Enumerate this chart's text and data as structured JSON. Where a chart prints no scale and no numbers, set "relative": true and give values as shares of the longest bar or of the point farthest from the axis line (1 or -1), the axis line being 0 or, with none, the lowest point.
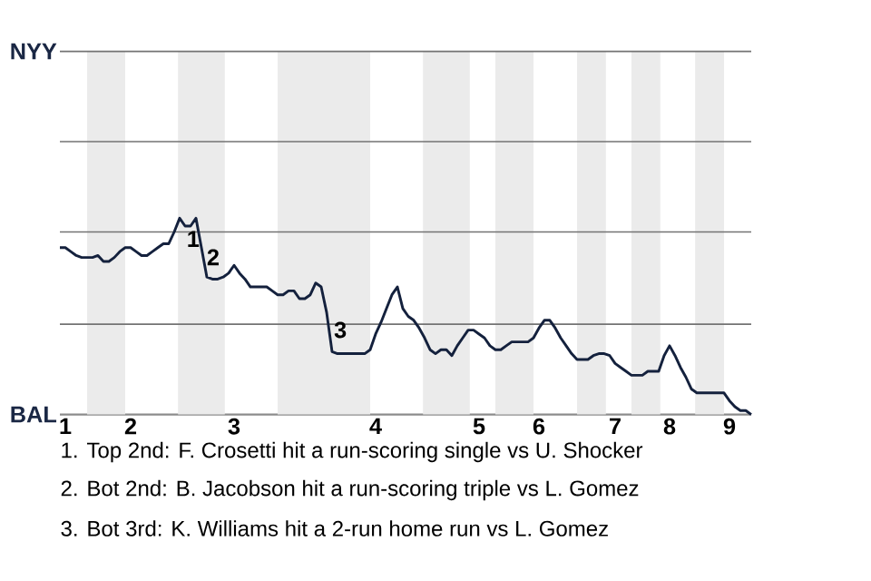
{
  "chart_data": {
    "type": "line",
    "relative": true,
    "categories": [
      null,
      "1",
      null,
      null,
      null,
      null,
      null,
      null,
      null,
      null,
      null,
      null,
      null,
      "2",
      null,
      null,
      null,
      null,
      null,
      null,
      null,
      null,
      null,
      null,
      null,
      null,
      null,
      null,
      null,
      null,
      null,
      null,
      "3",
      null,
      null,
      null,
      null,
      null,
      null,
      null,
      null,
      null,
      null,
      null,
      null,
      null,
      null,
      null,
      null,
      null,
      null,
      null,
      null,
      null,
      null,
      null,
      null,
      null,
      "4",
      null,
      null,
      null,
      null,
      null,
      null,
      null,
      null,
      null,
      null,
      null,
      null,
      null,
      null,
      null,
      null,
      null,
      null,
      "5",
      null,
      null,
      null,
      null,
      null,
      null,
      null,
      null,
      null,
      null,
      "6",
      null,
      null,
      null,
      null,
      null,
      null,
      null,
      null,
      null,
      null,
      null,
      null,
      null,
      "7",
      null,
      null,
      null,
      null,
      null,
      null,
      null,
      null,
      null,
      "8",
      null,
      null,
      null,
      null,
      null,
      null,
      null,
      null,
      null,
      null,
      "9",
      null,
      null,
      null,
      null
    ],
    "series": [
      {
        "color": "#14213d",
        "values": [
          0.85,
          0.85,
          0.83,
          0.81,
          0.8,
          0.8,
          0.8,
          0.81,
          0.78,
          0.78,
          0.8,
          0.83,
          0.85,
          0.85,
          0.83,
          0.81,
          0.81,
          0.83,
          0.85,
          0.87,
          0.87,
          0.93,
          1,
          0.96,
          0.96,
          1,
          0.85,
          0.7,
          0.69,
          0.69,
          0.7,
          0.72,
          0.76,
          0.72,
          0.69,
          0.65,
          0.65,
          0.65,
          0.65,
          0.63,
          0.61,
          0.61,
          0.63,
          0.63,
          0.59,
          0.59,
          0.61,
          0.67,
          0.65,
          0.52,
          0.32,
          0.31,
          0.31,
          0.31,
          0.31,
          0.31,
          0.31,
          0.33,
          0.41,
          0.47,
          0.54,
          0.61,
          0.65,
          0.54,
          0.5,
          0.48,
          0.44,
          0.39,
          0.33,
          0.31,
          0.33,
          0.33,
          0.3,
          0.35,
          0.39,
          0.43,
          0.43,
          0.41,
          0.39,
          0.35,
          0.33,
          0.33,
          0.35,
          0.37,
          0.37,
          0.37,
          0.37,
          0.39,
          0.44,
          0.48,
          0.48,
          0.44,
          0.39,
          0.35,
          0.31,
          0.28,
          0.28,
          0.28,
          0.3,
          0.31,
          0.31,
          0.3,
          0.26,
          0.24,
          0.22,
          0.2,
          0.2,
          0.2,
          0.22,
          0.22,
          0.22,
          0.3,
          0.35,
          0.3,
          0.24,
          0.19,
          0.13,
          0.11,
          0.11,
          0.11,
          0.11,
          0.11,
          0.11,
          0.07,
          0.04,
          0.02,
          0.02,
          0
        ]
      }
    ],
    "ref_lines": [
      {
        "axis": "y",
        "value": 0.46,
        "color": "#737373"
      },
      {
        "axis": "y",
        "value": 0.93,
        "color": "#737373"
      },
      {
        "axis": "y",
        "value": 1.39,
        "color": "#737373"
      },
      {
        "axis": "y",
        "value": 1.85,
        "color": "#737373"
      }
    ],
    "annotations": [
      "1",
      "2",
      "3",
      "NYY",
      "BAL",
      "1. Top 2nd: F. Crosetti hit a run-scoring single vs U. Shocker",
      "2. Bot 2nd: B. Jacobson hit a run-scoring triple vs L. Gomez",
      "3. Bot 3rd: K. Williams hit a 2-run home run vs L. Gomez"
    ]
  }
}
